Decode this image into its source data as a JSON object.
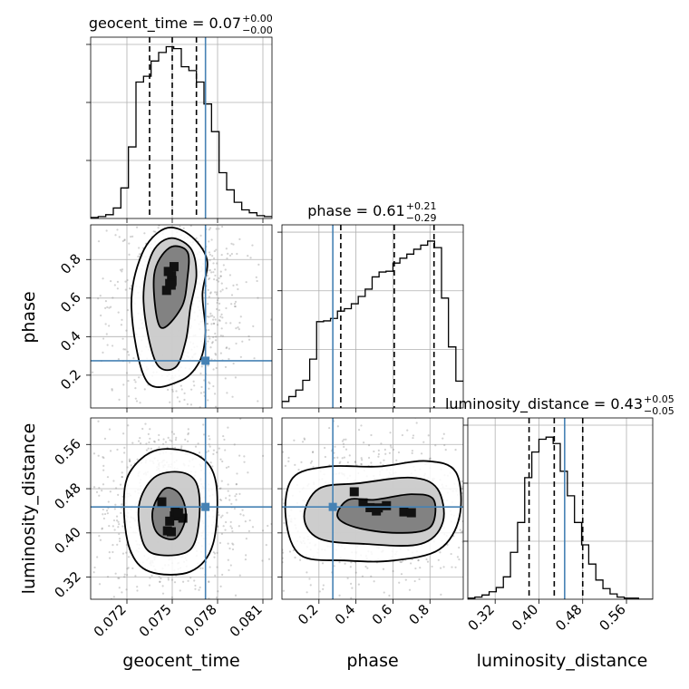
{
  "chart_data": [
    {
      "type": "histogram",
      "panel": "geocent_time_1d",
      "title": {
        "main": "geocent_time = 0.07",
        "sup": "+0.00",
        "sub": "−0.00"
      },
      "bins_edges": [
        0.0696,
        0.0701,
        0.0706,
        0.0711,
        0.0716,
        0.0721,
        0.0726,
        0.0731,
        0.0736,
        0.0741,
        0.0746,
        0.0751,
        0.0756,
        0.0761,
        0.0766,
        0.0771,
        0.0776,
        0.0781,
        0.0786,
        0.0791,
        0.0796,
        0.0801,
        0.0806,
        0.0811,
        0.0816
      ],
      "counts": [
        1,
        2,
        4,
        11,
        32,
        75,
        143,
        149,
        165,
        174,
        180,
        178,
        159,
        155,
        143,
        120,
        91,
        48,
        30,
        17,
        9,
        6,
        3,
        2
      ],
      "quantile_lines": [
        0.0735,
        0.075,
        0.0766
      ],
      "truth": 0.0772,
      "xlim": [
        0.0696,
        0.0816
      ],
      "ylim": [
        0,
        190
      ]
    },
    {
      "type": "histogram",
      "panel": "phase_1d",
      "title": {
        "main": "phase = 0.61",
        "sup": "+0.21",
        "sub": "−0.29"
      },
      "bins_edges": [
        0.0,
        0.0375,
        0.075,
        0.1125,
        0.15,
        0.1875,
        0.225,
        0.2625,
        0.3,
        0.3375,
        0.375,
        0.4125,
        0.45,
        0.4875,
        0.525,
        0.5625,
        0.6,
        0.6375,
        0.675,
        0.7125,
        0.75,
        0.7875,
        0.825,
        0.8625,
        0.9,
        0.94,
        0.98
      ],
      "counts": [
        8,
        14,
        22,
        34,
        60,
        106,
        107,
        110,
        119,
        122,
        128,
        137,
        146,
        161,
        167,
        168,
        178,
        184,
        189,
        195,
        200,
        205,
        197,
        135,
        75,
        33
      ],
      "quantile_lines": [
        0.318,
        0.607,
        0.822
      ],
      "truth": 0.275,
      "xlim": [
        0.0,
        0.98
      ],
      "ylim": [
        0,
        225
      ]
    },
    {
      "type": "histogram",
      "panel": "luminosity_distance_1d",
      "title": {
        "main": "luminosity_distance = 0.43",
        "sup": "+0.05",
        "sub": "−0.05"
      },
      "bins_edges": [
        0.27,
        0.283,
        0.296,
        0.309,
        0.322,
        0.335,
        0.348,
        0.361,
        0.374,
        0.387,
        0.4,
        0.413,
        0.426,
        0.439,
        0.452,
        0.465,
        0.478,
        0.491,
        0.504,
        0.517,
        0.53,
        0.543,
        0.556,
        0.569,
        0.582,
        0.595,
        0.608
      ],
      "counts": [
        1,
        2,
        4,
        7,
        11,
        21,
        44,
        72,
        114,
        138,
        150,
        152,
        146,
        120,
        97,
        72,
        51,
        33,
        18,
        10,
        5,
        2,
        1,
        1,
        0,
        0
      ],
      "quantile_lines": [
        0.382,
        0.428,
        0.48
      ],
      "truth": 0.447,
      "xlim": [
        0.27,
        0.608
      ],
      "ylim": [
        0,
        170
      ]
    },
    {
      "type": "scatter",
      "panel": "geocent_time_vs_phase",
      "x_param": "geocent_time",
      "y_param": "phase",
      "xlim": [
        0.0696,
        0.0816
      ],
      "ylim": [
        0.03,
        0.98
      ],
      "contour_levels": [
        [
          [
            0.0733,
            0.17
          ],
          [
            0.0723,
            0.55
          ],
          [
            0.073,
            0.83
          ],
          [
            0.0745,
            0.96
          ],
          [
            0.0761,
            0.93
          ],
          [
            0.0773,
            0.8
          ],
          [
            0.077,
            0.62
          ],
          [
            0.0772,
            0.42
          ],
          [
            0.0768,
            0.27
          ],
          [
            0.0755,
            0.17
          ]
        ],
        [
          [
            0.0739,
            0.27
          ],
          [
            0.0731,
            0.58
          ],
          [
            0.0736,
            0.82
          ],
          [
            0.0748,
            0.91
          ],
          [
            0.0762,
            0.86
          ],
          [
            0.0766,
            0.72
          ],
          [
            0.0762,
            0.55
          ],
          [
            0.0759,
            0.38
          ],
          [
            0.0752,
            0.24
          ]
        ],
        [
          [
            0.0742,
            0.45
          ],
          [
            0.0738,
            0.72
          ],
          [
            0.0748,
            0.86
          ],
          [
            0.076,
            0.84
          ],
          [
            0.076,
            0.7
          ],
          [
            0.0756,
            0.55
          ]
        ]
      ],
      "truth": {
        "x": 0.0772,
        "y": 0.275
      }
    },
    {
      "type": "scatter",
      "panel": "geocent_time_vs_luminosity_distance",
      "x_param": "geocent_time",
      "y_param": "luminosity_distance",
      "xlim": [
        0.0696,
        0.0816
      ],
      "ylim": [
        0.28,
        0.608
      ],
      "contour_levels": [
        [
          [
            0.0718,
            0.45
          ],
          [
            0.0722,
            0.37
          ],
          [
            0.0735,
            0.33
          ],
          [
            0.0762,
            0.33
          ],
          [
            0.0777,
            0.38
          ],
          [
            0.0779,
            0.49
          ],
          [
            0.0767,
            0.54
          ],
          [
            0.074,
            0.55
          ],
          [
            0.0722,
            0.51
          ]
        ],
        [
          [
            0.0728,
            0.45
          ],
          [
            0.0731,
            0.38
          ],
          [
            0.0742,
            0.36
          ],
          [
            0.0762,
            0.37
          ],
          [
            0.0768,
            0.43
          ],
          [
            0.0766,
            0.49
          ],
          [
            0.0755,
            0.51
          ],
          [
            0.0738,
            0.5
          ]
        ],
        [
          [
            0.0737,
            0.44
          ],
          [
            0.074,
            0.4
          ],
          [
            0.0752,
            0.39
          ],
          [
            0.0759,
            0.43
          ],
          [
            0.0755,
            0.47
          ],
          [
            0.0745,
            0.48
          ]
        ]
      ],
      "truth": {
        "x": 0.0772,
        "y": 0.447
      }
    },
    {
      "type": "scatter",
      "panel": "phase_vs_luminosity_distance",
      "x_param": "phase",
      "y_param": "luminosity_distance",
      "xlim": [
        0.0,
        0.98
      ],
      "ylim": [
        0.28,
        0.608
      ],
      "contour_levels": [
        [
          [
            0.02,
            0.43
          ],
          [
            0.1,
            0.36
          ],
          [
            0.35,
            0.35
          ],
          [
            0.6,
            0.35
          ],
          [
            0.85,
            0.37
          ],
          [
            0.96,
            0.43
          ],
          [
            0.94,
            0.51
          ],
          [
            0.78,
            0.53
          ],
          [
            0.52,
            0.52
          ],
          [
            0.25,
            0.52
          ],
          [
            0.06,
            0.5
          ]
        ],
        [
          [
            0.12,
            0.43
          ],
          [
            0.2,
            0.39
          ],
          [
            0.45,
            0.38
          ],
          [
            0.75,
            0.38
          ],
          [
            0.87,
            0.42
          ],
          [
            0.84,
            0.48
          ],
          [
            0.7,
            0.5
          ],
          [
            0.42,
            0.49
          ],
          [
            0.2,
            0.48
          ]
        ],
        [
          [
            0.3,
            0.43
          ],
          [
            0.4,
            0.41
          ],
          [
            0.62,
            0.4
          ],
          [
            0.8,
            0.41
          ],
          [
            0.82,
            0.46
          ],
          [
            0.7,
            0.47
          ],
          [
            0.5,
            0.46
          ],
          [
            0.36,
            0.46
          ]
        ]
      ],
      "truth": {
        "x": 0.275,
        "y": 0.447
      }
    }
  ],
  "axes": {
    "geocent_time": {
      "label": "geocent_time",
      "ticks": [
        0.072,
        0.075,
        0.078,
        0.081
      ],
      "tick_labels": [
        "0.072",
        "0.075",
        "0.078",
        "0.081"
      ]
    },
    "phase": {
      "label": "phase",
      "ticks": [
        0.2,
        0.4,
        0.6,
        0.8
      ],
      "tick_labels": [
        "0.2",
        "0.4",
        "0.6",
        "0.8"
      ]
    },
    "luminosity_distance": {
      "label": "luminosity_distance",
      "ticks": [
        0.32,
        0.4,
        0.48,
        0.56
      ],
      "tick_labels": [
        "0.32",
        "0.40",
        "0.48",
        "0.56"
      ]
    }
  },
  "colors": {
    "truth": "#4682b4",
    "hist": "#000000",
    "grid": "#b0b0b0",
    "points": "#7f7f7f"
  }
}
